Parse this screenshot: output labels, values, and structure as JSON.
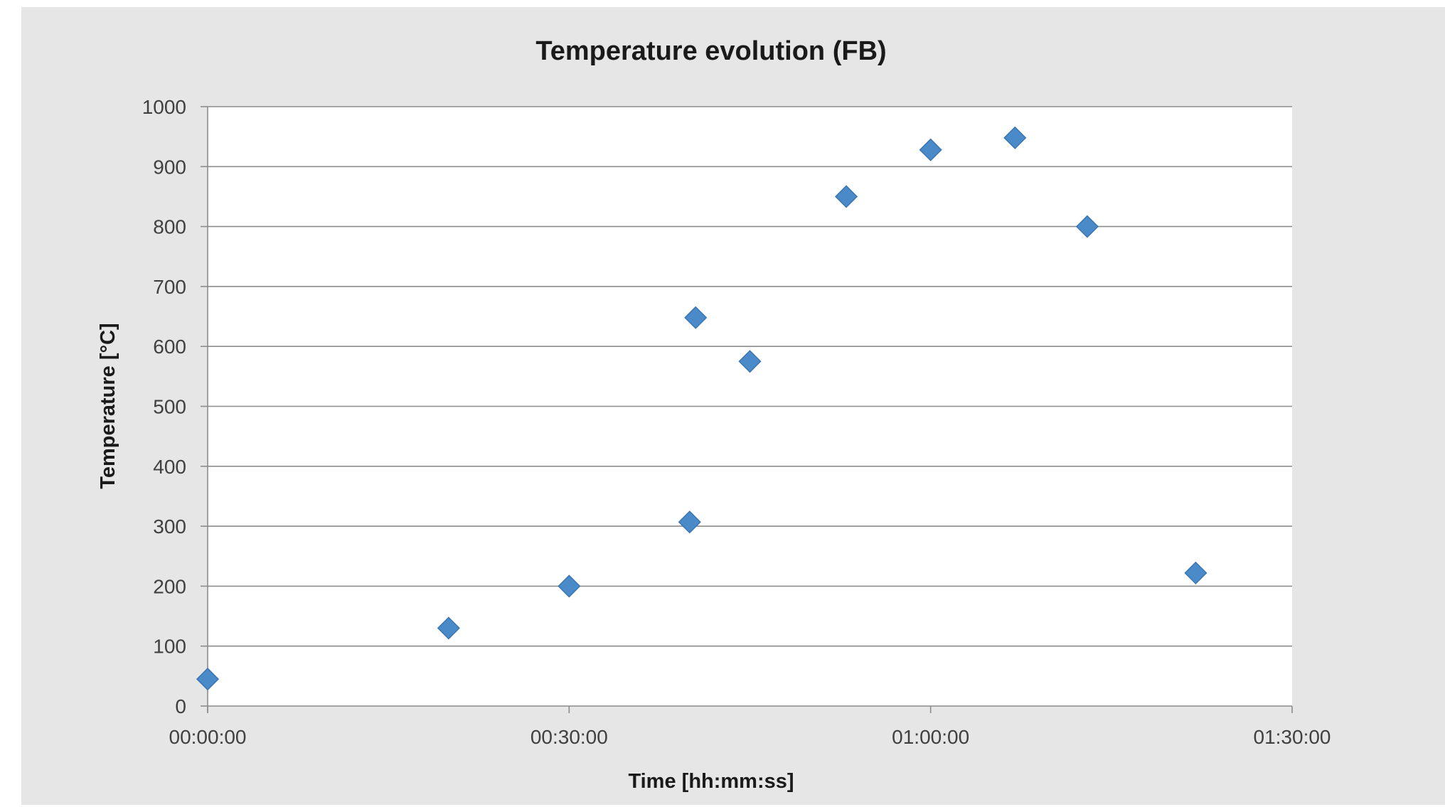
{
  "chart_data": {
    "type": "scatter",
    "title": "Temperature evolution (FB)",
    "xlabel": "Time [hh:mm:ss]",
    "ylabel": "Temperature [°C]",
    "x_unit": "hh:mm:ss",
    "xlim": [
      "00:00:00",
      "01:30:00"
    ],
    "ylim": [
      0,
      1000
    ],
    "x_ticks": [
      "00:00:00",
      "00:30:00",
      "01:00:00",
      "01:30:00"
    ],
    "y_ticks": [
      0,
      100,
      200,
      300,
      400,
      500,
      600,
      700,
      800,
      900,
      1000
    ],
    "grid": true,
    "legend": "none",
    "marker": "diamond",
    "series": [
      {
        "color": "#4a8ac9",
        "points": [
          {
            "x": "00:00:00",
            "y": 45
          },
          {
            "x": "00:20:00",
            "y": 130
          },
          {
            "x": "00:30:00",
            "y": 200
          },
          {
            "x": "00:40:00",
            "y": 307
          },
          {
            "x": "00:40:30",
            "y": 648
          },
          {
            "x": "00:45:00",
            "y": 575
          },
          {
            "x": "00:53:00",
            "y": 850
          },
          {
            "x": "01:00:00",
            "y": 928
          },
          {
            "x": "01:07:00",
            "y": 948
          },
          {
            "x": "01:13:00",
            "y": 800
          },
          {
            "x": "01:22:00",
            "y": 222
          }
        ]
      }
    ]
  }
}
